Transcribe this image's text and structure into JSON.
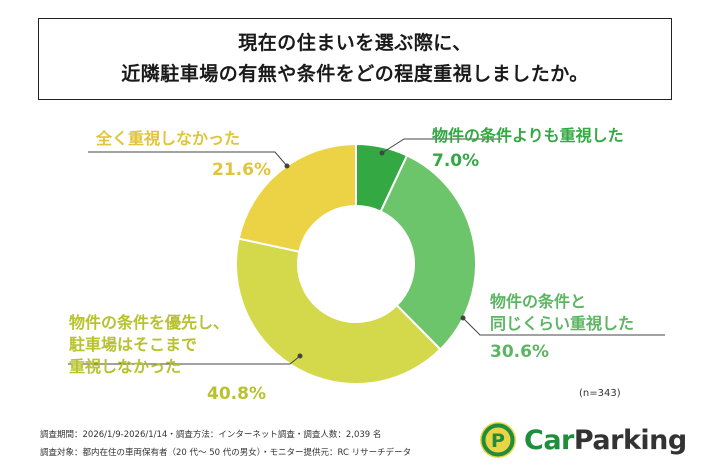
{
  "title": {
    "line1": "現在の住まいを選ぶ際に、",
    "line2": "近隣駐車場の有無や条件をどの程度重視しましたか。"
  },
  "chart_data": {
    "type": "pie",
    "donut": true,
    "categories": [
      "物件の条件よりも重視した",
      "物件の条件と同じくらい重視した",
      "物件の条件を優先し、駐車場はそこまで重視しなかった",
      "全く重視しなかった"
    ],
    "values": [
      7.0,
      30.6,
      40.8,
      21.6
    ],
    "value_labels": [
      "7.0%",
      "30.6%",
      "40.8%",
      "21.6%"
    ],
    "colors": [
      "#33a843",
      "#6dc56b",
      "#d3d94a",
      "#ecd346"
    ],
    "label_colors": [
      "#33a843",
      "#5cb562",
      "#b8c22e",
      "#e2c43a"
    ]
  },
  "labels": {
    "s1": {
      "line1": "物件の条件よりも重視した",
      "pct": "7.0%"
    },
    "s2": {
      "line1": "物件の条件と",
      "line2": "同じくらい重視した",
      "pct": "30.6%"
    },
    "s3": {
      "line1": "物件の条件を優先し、",
      "line2": "駐車場はそこまで",
      "line3": "重視しなかった",
      "pct": "40.8%"
    },
    "s4": {
      "line1": "全く重視しなかった",
      "pct": "21.6%"
    }
  },
  "sample_note": "(n=343)",
  "footer": {
    "line1": "調査期間：2026/1/9-2026/1/14・調査方法：インターネット調査・調査人数：2,039 名",
    "line2": "調査対象：都内在住の車両保有者（20 代～ 50 代の男女）・モニター提供元：RC リサーチデータ"
  },
  "logo": {
    "car": "Car",
    "parking": "Parking",
    "mark": "P"
  }
}
